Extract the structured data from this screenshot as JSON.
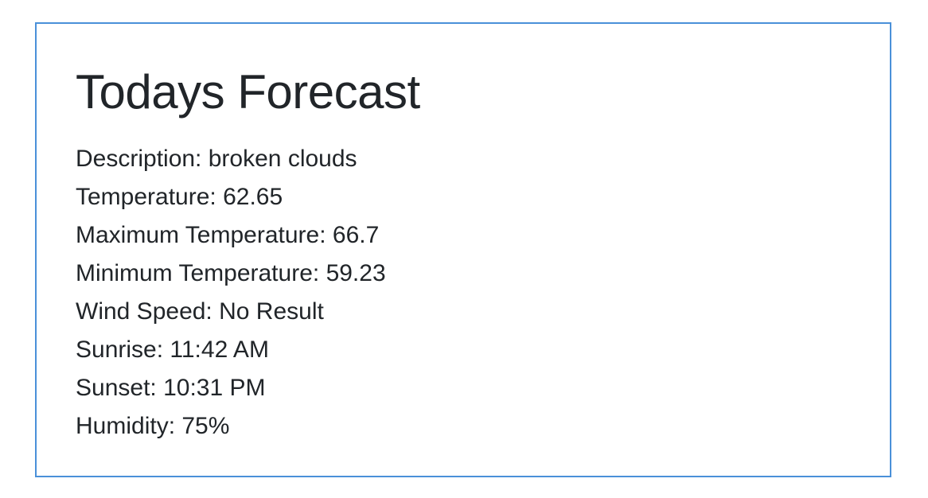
{
  "forecast": {
    "title": "Todays Forecast",
    "rows": [
      {
        "label": "Description:",
        "value": "broken clouds"
      },
      {
        "label": "Temperature:",
        "value": "62.65"
      },
      {
        "label": "Maximum Temperature:",
        "value": "66.7"
      },
      {
        "label": "Minimum Temperature:",
        "value": "59.23"
      },
      {
        "label": "Wind Speed:",
        "value": "No Result"
      },
      {
        "label": "Sunrise:",
        "value": "11:42 AM"
      },
      {
        "label": "Sunset:",
        "value": "10:31 PM"
      },
      {
        "label": "Humidity:",
        "value": "75%"
      }
    ]
  },
  "colors": {
    "border": "#4a90d9",
    "text": "#212529"
  }
}
